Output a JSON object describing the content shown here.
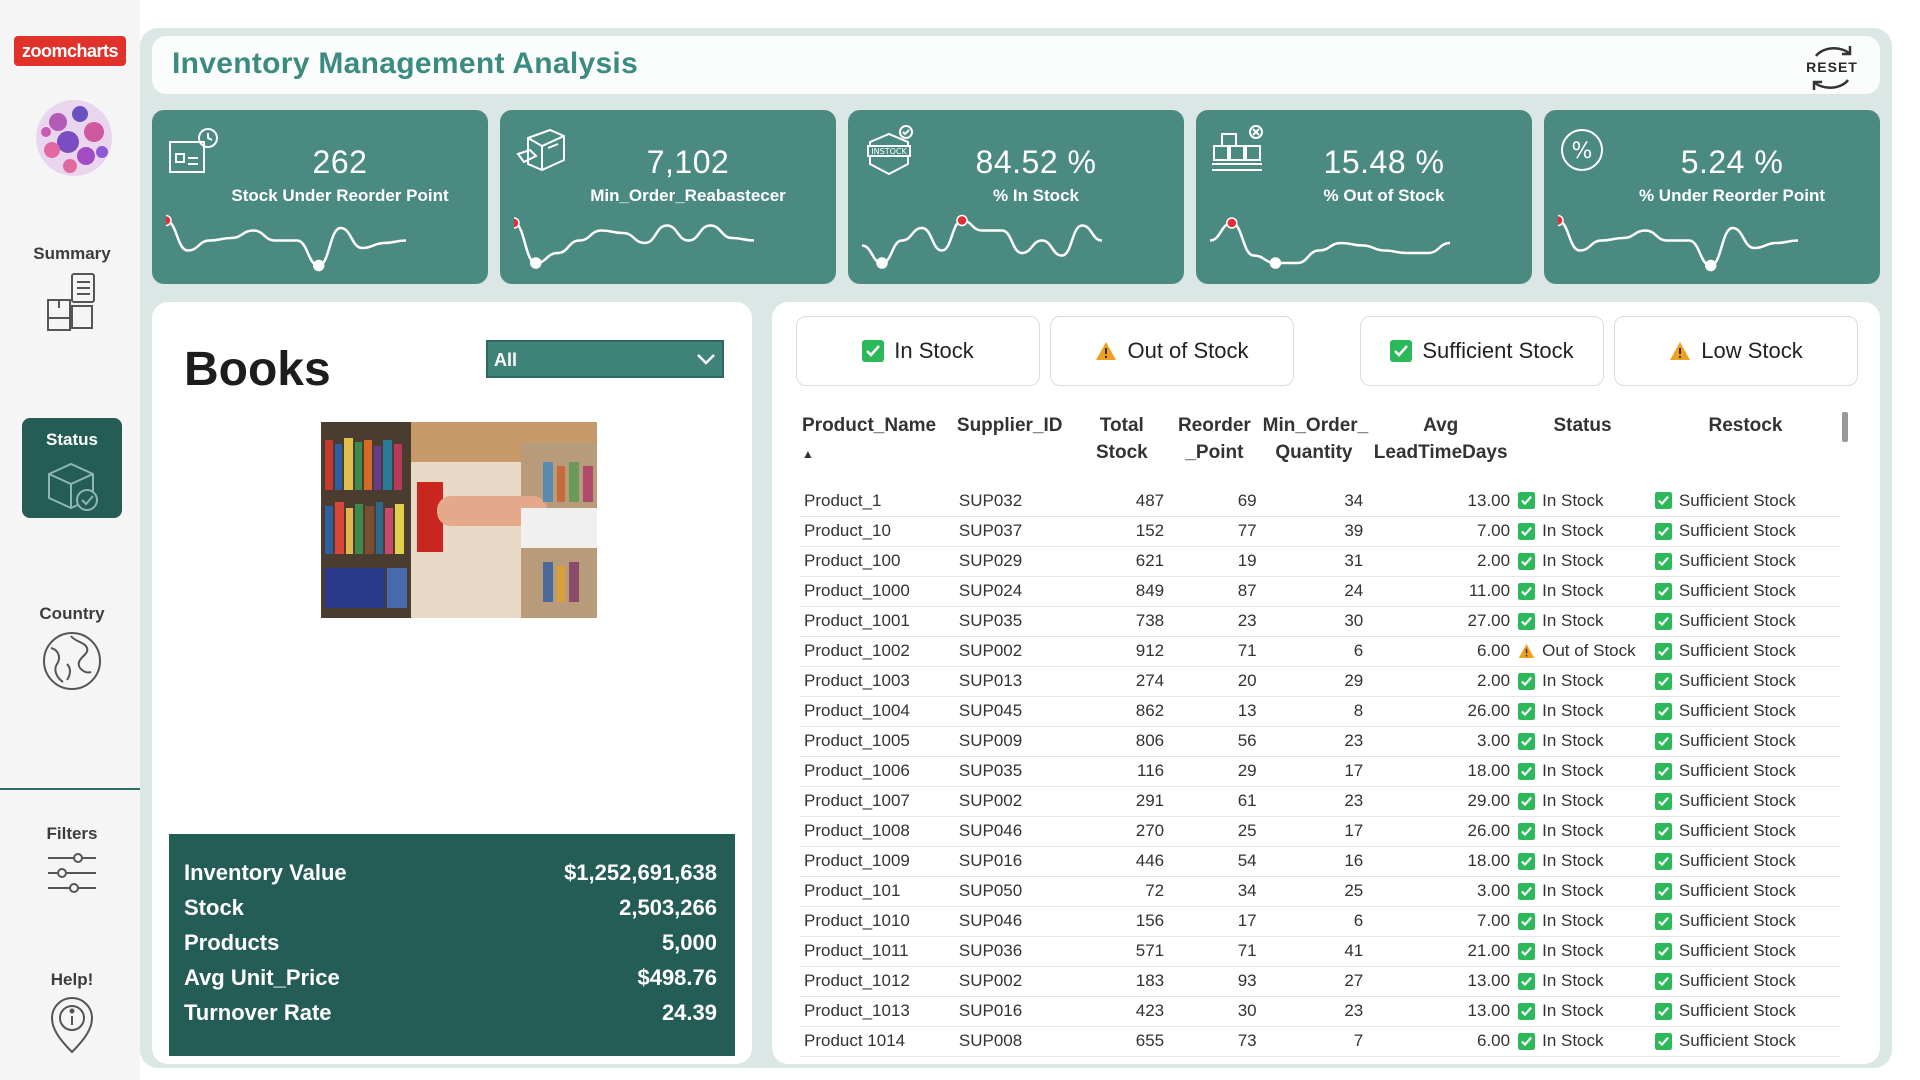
{
  "brand": {
    "name": "zoomcharts"
  },
  "sidebar": {
    "items": [
      {
        "label": "Summary",
        "icon": "boxes-clipboard-icon"
      },
      {
        "label": "Status",
        "icon": "box-check-icon",
        "active": true
      },
      {
        "label": "Country",
        "icon": "globe-icon"
      },
      {
        "label": "Filters",
        "icon": "sliders-icon"
      },
      {
        "label": "Help!",
        "icon": "info-pin-icon"
      }
    ]
  },
  "header": {
    "title": "Inventory Management Analysis",
    "reset_label": "RESET"
  },
  "kpis": [
    {
      "value": "262",
      "label": "Stock Under Reorder Point",
      "icon": "reorder-box-icon",
      "spark": [
        0.95,
        0.35,
        0.55,
        0.6,
        0.75,
        0.55,
        0.55,
        0.05,
        0.8,
        0.4,
        0.5,
        0.55
      ],
      "marker_max": 0,
      "marker_min": 7
    },
    {
      "value": "7,102",
      "label": "Min_Order_Reabastecer",
      "icon": "package-icon",
      "spark": [
        0.9,
        0.1,
        0.3,
        0.55,
        0.75,
        0.7,
        0.5,
        0.85,
        0.55,
        0.85,
        0.6,
        0.55
      ],
      "marker_max": 0,
      "marker_min": 1
    },
    {
      "value": "84.52 %",
      "label": "% In Stock",
      "icon": "instock-badge-icon",
      "spark": [
        0.45,
        0.1,
        0.55,
        0.8,
        0.35,
        0.95,
        0.75,
        0.75,
        0.3,
        0.55,
        0.25,
        0.85,
        0.55
      ],
      "marker_max": 5,
      "marker_min": 1
    },
    {
      "value": "15.48 %",
      "label": "% Out of Stock",
      "icon": "pallet-x-icon",
      "spark": [
        0.55,
        0.9,
        0.25,
        0.1,
        0.1,
        0.35,
        0.5,
        0.45,
        0.35,
        0.3,
        0.3,
        0.5
      ],
      "marker_max": 1,
      "marker_min": 3
    },
    {
      "value": "5.24 %",
      "label": "% Under Reorder Point",
      "icon": "percent-circle-icon",
      "spark": [
        0.95,
        0.35,
        0.55,
        0.6,
        0.75,
        0.55,
        0.55,
        0.05,
        0.8,
        0.4,
        0.5,
        0.55
      ],
      "marker_max": 0,
      "marker_min": 7
    }
  ],
  "category": {
    "title": "Books",
    "select_value": "All",
    "image_alt": "Hand taking a red book from a library shelf"
  },
  "summary": [
    {
      "label": "Inventory Value",
      "value": "$1,252,691,638"
    },
    {
      "label": "Stock",
      "value": "2,503,266"
    },
    {
      "label": "Products",
      "value": "5,000"
    },
    {
      "label": "Avg Unit_Price",
      "value": "$498.76"
    },
    {
      "label": "Turnover Rate",
      "value": "24.39"
    }
  ],
  "filters": [
    {
      "label": "In Stock",
      "icon": "check-green-icon"
    },
    {
      "label": "Out of Stock",
      "icon": "warning-orange-icon"
    },
    {
      "label": "Sufficient Stock",
      "icon": "check-green-icon"
    },
    {
      "label": "Low Stock",
      "icon": "warning-orange-icon"
    }
  ],
  "table": {
    "columns": [
      {
        "line1": "Product_Name",
        "line2": ""
      },
      {
        "line1": "Supplier_ID",
        "line2": ""
      },
      {
        "line1": "Total",
        "line2": "Stock"
      },
      {
        "line1": "Reorder",
        "line2": "_Point"
      },
      {
        "line1": "Min_Order_",
        "line2": "Quantity"
      },
      {
        "line1": "Avg",
        "line2": "LeadTimeDays"
      },
      {
        "line1": "Status",
        "line2": ""
      },
      {
        "line1": "Restock",
        "line2": ""
      }
    ],
    "rows": [
      [
        "Product_1",
        "SUP032",
        "487",
        "69",
        "34",
        "13.00",
        "In Stock",
        "Sufficient Stock"
      ],
      [
        "Product_10",
        "SUP037",
        "152",
        "77",
        "39",
        "7.00",
        "In Stock",
        "Sufficient Stock"
      ],
      [
        "Product_100",
        "SUP029",
        "621",
        "19",
        "31",
        "2.00",
        "In Stock",
        "Sufficient Stock"
      ],
      [
        "Product_1000",
        "SUP024",
        "849",
        "87",
        "24",
        "11.00",
        "In Stock",
        "Sufficient Stock"
      ],
      [
        "Product_1001",
        "SUP035",
        "738",
        "23",
        "30",
        "27.00",
        "In Stock",
        "Sufficient Stock"
      ],
      [
        "Product_1002",
        "SUP002",
        "912",
        "71",
        "6",
        "6.00",
        "Out of Stock",
        "Sufficient Stock"
      ],
      [
        "Product_1003",
        "SUP013",
        "274",
        "20",
        "29",
        "2.00",
        "In Stock",
        "Sufficient Stock"
      ],
      [
        "Product_1004",
        "SUP045",
        "862",
        "13",
        "8",
        "26.00",
        "In Stock",
        "Sufficient Stock"
      ],
      [
        "Product_1005",
        "SUP009",
        "806",
        "56",
        "23",
        "3.00",
        "In Stock",
        "Sufficient Stock"
      ],
      [
        "Product_1006",
        "SUP035",
        "116",
        "29",
        "17",
        "18.00",
        "In Stock",
        "Sufficient Stock"
      ],
      [
        "Product_1007",
        "SUP002",
        "291",
        "61",
        "23",
        "29.00",
        "In Stock",
        "Sufficient Stock"
      ],
      [
        "Product_1008",
        "SUP046",
        "270",
        "25",
        "17",
        "26.00",
        "In Stock",
        "Sufficient Stock"
      ],
      [
        "Product_1009",
        "SUP016",
        "446",
        "54",
        "16",
        "18.00",
        "In Stock",
        "Sufficient Stock"
      ],
      [
        "Product_101",
        "SUP050",
        "72",
        "34",
        "25",
        "3.00",
        "In Stock",
        "Sufficient Stock"
      ],
      [
        "Product_1010",
        "SUP046",
        "156",
        "17",
        "6",
        "7.00",
        "In Stock",
        "Sufficient Stock"
      ],
      [
        "Product_1011",
        "SUP036",
        "571",
        "71",
        "41",
        "21.00",
        "In Stock",
        "Sufficient Stock"
      ],
      [
        "Product_1012",
        "SUP002",
        "183",
        "93",
        "27",
        "13.00",
        "In Stock",
        "Sufficient Stock"
      ],
      [
        "Product_1013",
        "SUP016",
        "423",
        "30",
        "23",
        "13.00",
        "In Stock",
        "Sufficient Stock"
      ],
      [
        "Product 1014",
        "SUP008",
        "655",
        "73",
        "7",
        "6.00",
        "In Stock",
        "Sufficient Stock"
      ]
    ]
  },
  "colors": {
    "teal_card": "#4a8a80",
    "dark_teal": "#245c56",
    "marker_red": "#e0313b",
    "check_green": "#2db85a",
    "warning_orange": "#f0a020"
  }
}
